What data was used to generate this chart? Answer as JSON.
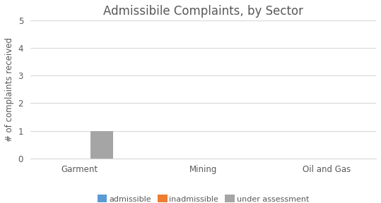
{
  "title": "Admissibile Complaints, by Sector",
  "ylabel": "# of complaints received",
  "categories": [
    "Garment",
    "Mining",
    "Oil and Gas"
  ],
  "series": [
    {
      "label": "admissible",
      "color": "#5b9bd5",
      "values": [
        0,
        0,
        0
      ]
    },
    {
      "label": "inadmissible",
      "color": "#ed7d31",
      "values": [
        0,
        0,
        0
      ]
    },
    {
      "label": "under assessment",
      "color": "#a5a5a5",
      "values": [
        1,
        0,
        0
      ]
    }
  ],
  "ylim": [
    0,
    5
  ],
  "yticks": [
    0,
    1,
    2,
    3,
    4,
    5
  ],
  "background_color": "#ffffff",
  "title_fontsize": 12,
  "bar_width": 0.18,
  "legend_fontsize": 8,
  "tick_fontsize": 8.5,
  "ylabel_fontsize": 8.5,
  "grid_color": "#d9d9d9",
  "spine_color": "#d9d9d9",
  "text_color": "#595959"
}
